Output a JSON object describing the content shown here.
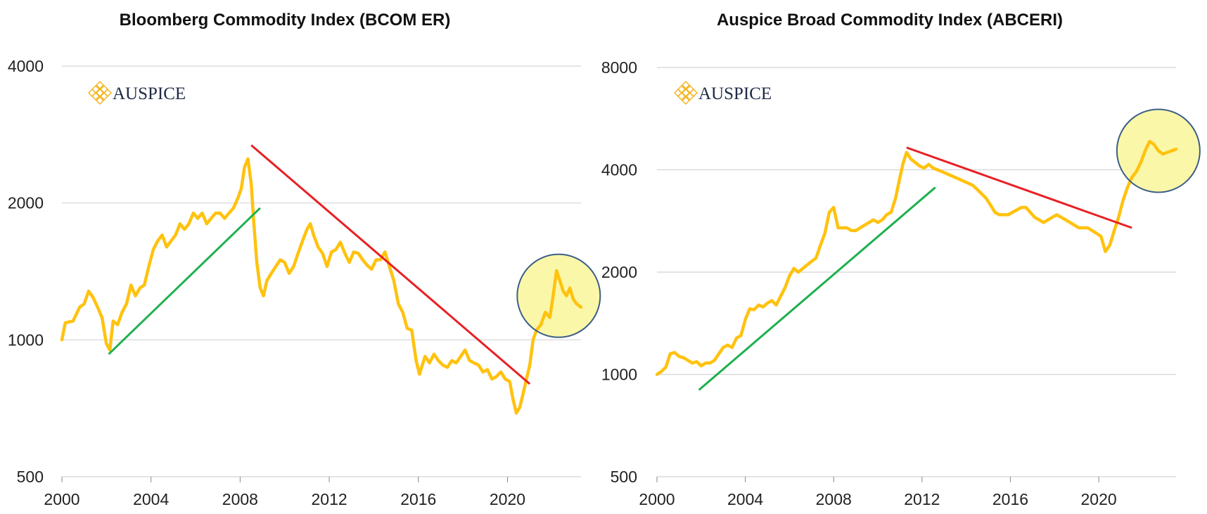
{
  "logo": {
    "text": "AUSPICE",
    "icon": "auspice-knot-icon",
    "color": "#f3b21b"
  },
  "colors": {
    "series": "#ffc20e",
    "uptrend": "#1fb04f",
    "downtrend": "#e82024",
    "highlight_fill": "#fbf7a9",
    "highlight_stroke": "#3b5f88",
    "grid": "#d4d4d4"
  },
  "chart_data": [
    {
      "type": "line",
      "title": "Bloomberg Commodity Index (BCOM ER)",
      "xlabel": "",
      "ylabel": "",
      "scale": "log",
      "xlim": [
        2000,
        2023.3
      ],
      "ylim": [
        500,
        4000
      ],
      "x_ticks": [
        "2000",
        "2004",
        "2008",
        "2012",
        "2016",
        "2020"
      ],
      "y_ticks": [
        "500",
        "1000",
        "2000",
        "4000"
      ],
      "grid": "horizontal",
      "series": [
        {
          "x": [
            2000,
            2000.15,
            2000.5,
            2000.8,
            2001,
            2001.2,
            2001.4,
            2001.6,
            2001.8,
            2002,
            2002.15,
            2002.3,
            2002.5,
            2002.7,
            2002.9,
            2003.1,
            2003.3,
            2003.5,
            2003.7,
            2003.9,
            2004.1,
            2004.3,
            2004.5,
            2004.7,
            2004.9,
            2005.1,
            2005.3,
            2005.5,
            2005.7,
            2005.9,
            2006.1,
            2006.3,
            2006.5,
            2006.7,
            2006.9,
            2007.1,
            2007.3,
            2007.5,
            2007.7,
            2007.9,
            2008.05,
            2008.2,
            2008.35,
            2008.5,
            2008.6,
            2008.75,
            2008.9,
            2009.05,
            2009.2,
            2009.4,
            2009.6,
            2009.8,
            2010,
            2010.2,
            2010.4,
            2010.6,
            2010.8,
            2011,
            2011.15,
            2011.3,
            2011.5,
            2011.7,
            2011.9,
            2012.1,
            2012.3,
            2012.5,
            2012.7,
            2012.9,
            2013.1,
            2013.3,
            2013.5,
            2013.7,
            2013.9,
            2014.1,
            2014.3,
            2014.5,
            2014.7,
            2014.9,
            2015.1,
            2015.3,
            2015.5,
            2015.7,
            2015.9,
            2016.05,
            2016.3,
            2016.5,
            2016.7,
            2016.9,
            2017.1,
            2017.3,
            2017.5,
            2017.7,
            2017.9,
            2018.1,
            2018.3,
            2018.5,
            2018.7,
            2018.9,
            2019.1,
            2019.3,
            2019.5,
            2019.7,
            2019.9,
            2020.1,
            2020.25,
            2020.4,
            2020.55,
            2020.7,
            2020.85,
            2021,
            2021.15,
            2021.3,
            2021.5,
            2021.7,
            2021.9,
            2022.05,
            2022.2,
            2022.35,
            2022.5,
            2022.65,
            2022.8,
            2022.95,
            2023.1,
            2023.3
          ],
          "y": [
            1000,
            1090,
            1100,
            1180,
            1200,
            1280,
            1240,
            1180,
            1120,
            980,
            950,
            1100,
            1080,
            1150,
            1200,
            1320,
            1250,
            1300,
            1320,
            1450,
            1580,
            1650,
            1700,
            1600,
            1650,
            1700,
            1800,
            1750,
            1800,
            1900,
            1850,
            1900,
            1800,
            1850,
            1900,
            1900,
            1850,
            1900,
            1950,
            2050,
            2150,
            2400,
            2500,
            2200,
            1850,
            1480,
            1300,
            1250,
            1350,
            1400,
            1450,
            1500,
            1480,
            1400,
            1450,
            1550,
            1650,
            1750,
            1800,
            1700,
            1600,
            1550,
            1450,
            1560,
            1580,
            1640,
            1550,
            1480,
            1560,
            1550,
            1500,
            1460,
            1430,
            1500,
            1500,
            1560,
            1450,
            1350,
            1200,
            1150,
            1060,
            1050,
            900,
            840,
            920,
            890,
            930,
            900,
            880,
            870,
            900,
            890,
            920,
            950,
            900,
            890,
            880,
            850,
            860,
            820,
            830,
            850,
            820,
            810,
            740,
            690,
            710,
            760,
            820,
            880,
            1000,
            1050,
            1080,
            1150,
            1120,
            1250,
            1420,
            1350,
            1280,
            1250,
            1300,
            1230,
            1200,
            1180
          ]
        }
      ],
      "annotations": [
        {
          "type": "trendline",
          "color": "green",
          "from": [
            2002.1,
            930
          ],
          "to": [
            2008.9,
            1950
          ]
        },
        {
          "type": "trendline",
          "color": "red",
          "from": [
            2008.5,
            2680
          ],
          "to": [
            2021,
            800
          ]
        },
        {
          "type": "highlight-circle",
          "center": [
            2022.3,
            1250
          ]
        }
      ]
    },
    {
      "type": "line",
      "title": "Auspice Broad Commodity Index (ABCERI)",
      "xlabel": "",
      "ylabel": "",
      "scale": "log",
      "xlim": [
        2000,
        2023.5
      ],
      "ylim": [
        500,
        8000
      ],
      "x_ticks": [
        "2000",
        "2004",
        "2008",
        "2012",
        "2016",
        "2020"
      ],
      "y_ticks": [
        "500",
        "1000",
        "2000",
        "4000",
        "8000"
      ],
      "grid": "horizontal",
      "series": [
        {
          "x": [
            2000,
            2000.2,
            2000.4,
            2000.6,
            2000.8,
            2001,
            2001.2,
            2001.4,
            2001.6,
            2001.8,
            2002,
            2002.2,
            2002.4,
            2002.6,
            2002.8,
            2003,
            2003.2,
            2003.4,
            2003.6,
            2003.8,
            2004,
            2004.2,
            2004.4,
            2004.6,
            2004.8,
            2005,
            2005.2,
            2005.4,
            2005.6,
            2005.8,
            2006,
            2006.2,
            2006.4,
            2006.6,
            2006.8,
            2007,
            2007.2,
            2007.4,
            2007.6,
            2007.8,
            2008,
            2008.2,
            2008.4,
            2008.6,
            2008.8,
            2009,
            2009.2,
            2009.4,
            2009.6,
            2009.8,
            2010,
            2010.2,
            2010.4,
            2010.6,
            2010.8,
            2011,
            2011.15,
            2011.3,
            2011.5,
            2011.7,
            2011.9,
            2012.1,
            2012.3,
            2012.5,
            2012.7,
            2012.9,
            2013.1,
            2013.3,
            2013.5,
            2013.7,
            2013.9,
            2014.1,
            2014.3,
            2014.5,
            2014.7,
            2014.9,
            2015.1,
            2015.3,
            2015.5,
            2015.7,
            2015.9,
            2016.1,
            2016.3,
            2016.5,
            2016.7,
            2016.9,
            2017.1,
            2017.3,
            2017.5,
            2017.7,
            2017.9,
            2018.1,
            2018.3,
            2018.5,
            2018.7,
            2018.9,
            2019.1,
            2019.3,
            2019.5,
            2019.7,
            2019.9,
            2020.1,
            2020.3,
            2020.5,
            2020.7,
            2020.9,
            2021.1,
            2021.3,
            2021.5,
            2021.7,
            2021.9,
            2022.1,
            2022.3,
            2022.5,
            2022.7,
            2022.9,
            2023.1,
            2023.3,
            2023.5
          ],
          "y": [
            1000,
            1020,
            1050,
            1150,
            1160,
            1130,
            1120,
            1100,
            1080,
            1090,
            1060,
            1080,
            1080,
            1100,
            1150,
            1200,
            1220,
            1200,
            1280,
            1300,
            1450,
            1560,
            1550,
            1600,
            1580,
            1620,
            1650,
            1600,
            1700,
            1800,
            1950,
            2050,
            2000,
            2050,
            2100,
            2150,
            2200,
            2400,
            2600,
            3000,
            3100,
            2700,
            2700,
            2700,
            2650,
            2650,
            2700,
            2750,
            2800,
            2850,
            2800,
            2850,
            2950,
            3000,
            3300,
            3800,
            4200,
            4500,
            4300,
            4200,
            4100,
            4050,
            4150,
            4050,
            4000,
            3950,
            3900,
            3850,
            3800,
            3750,
            3700,
            3650,
            3600,
            3500,
            3400,
            3300,
            3150,
            3000,
            2950,
            2950,
            2950,
            3000,
            3050,
            3100,
            3100,
            3000,
            2900,
            2850,
            2800,
            2850,
            2900,
            2950,
            2900,
            2850,
            2800,
            2750,
            2700,
            2700,
            2700,
            2650,
            2600,
            2550,
            2300,
            2400,
            2650,
            2900,
            3250,
            3550,
            3800,
            3950,
            4200,
            4550,
            4850,
            4750,
            4550,
            4450,
            4500,
            4550,
            4600
          ]
        }
      ],
      "annotations": [
        {
          "type": "trendline",
          "color": "green",
          "from": [
            2001.9,
            900
          ],
          "to": [
            2012.6,
            3550
          ]
        },
        {
          "type": "trendline",
          "color": "red",
          "from": [
            2011.3,
            4650
          ],
          "to": [
            2021.5,
            2700
          ]
        },
        {
          "type": "highlight-circle",
          "center": [
            2022.7,
            4550
          ]
        }
      ]
    }
  ]
}
